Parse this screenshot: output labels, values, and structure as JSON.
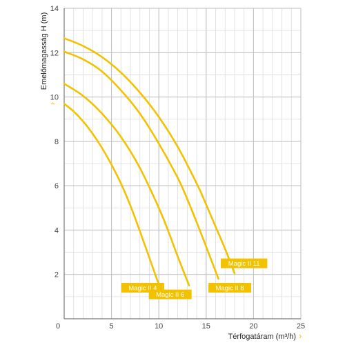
{
  "chart_data": {
    "type": "line",
    "xlabel": "Térfogatáram (m³/h)",
    "ylabel": "Emelőmagasság  H (m)",
    "axis_arrow": "›",
    "xlim": [
      0,
      25
    ],
    "ylim": [
      0,
      14
    ],
    "x_ticks": [
      0,
      5,
      10,
      15,
      20,
      25
    ],
    "y_ticks": [
      0,
      2,
      4,
      6,
      8,
      10,
      12,
      14
    ],
    "minor_grid_step_x": 1,
    "minor_grid_step_y": 1,
    "grid": true,
    "line_color": "#f2c200",
    "tag_color": "#f2c200",
    "axis_arrow_color": "#f2c200",
    "series": [
      {
        "name": "Magic II 4",
        "x": [
          0,
          1,
          2,
          3,
          4,
          5,
          6,
          7,
          8,
          9,
          10,
          10.6
        ],
        "y": [
          9.7,
          9.35,
          8.9,
          8.35,
          7.7,
          6.95,
          6.1,
          5.1,
          3.95,
          2.75,
          1.55,
          1.0
        ]
      },
      {
        "name": "Magic II 6",
        "x": [
          0,
          2,
          4,
          6,
          8,
          10,
          11,
          12,
          13.2
        ],
        "y": [
          10.6,
          10.05,
          9.25,
          8.2,
          6.8,
          5.0,
          3.95,
          2.8,
          1.5
        ]
      },
      {
        "name": "Magic II 8",
        "x": [
          0,
          2,
          4,
          6,
          8,
          10,
          12,
          13,
          14,
          15,
          16.3
        ],
        "y": [
          12.05,
          11.7,
          11.15,
          10.3,
          9.25,
          7.9,
          6.35,
          5.4,
          4.35,
          3.25,
          1.8
        ]
      },
      {
        "name": "Magic II 11",
        "x": [
          0,
          2,
          4,
          6,
          8,
          10,
          12,
          14,
          15,
          16,
          17,
          18
        ],
        "y": [
          12.65,
          12.3,
          11.8,
          11.1,
          10.2,
          9.1,
          7.75,
          6.1,
          5.15,
          4.15,
          3.15,
          2.05
        ]
      }
    ],
    "labels": [
      {
        "text": "Magic II 4",
        "x": 8.3,
        "y": 1.4
      },
      {
        "text": "Magic II 6",
        "x": 11.2,
        "y": 1.1
      },
      {
        "text": "Magic II 8",
        "x": 17.5,
        "y": 1.4
      },
      {
        "text": "Magic II 11",
        "x": 19.0,
        "y": 2.5
      }
    ]
  }
}
